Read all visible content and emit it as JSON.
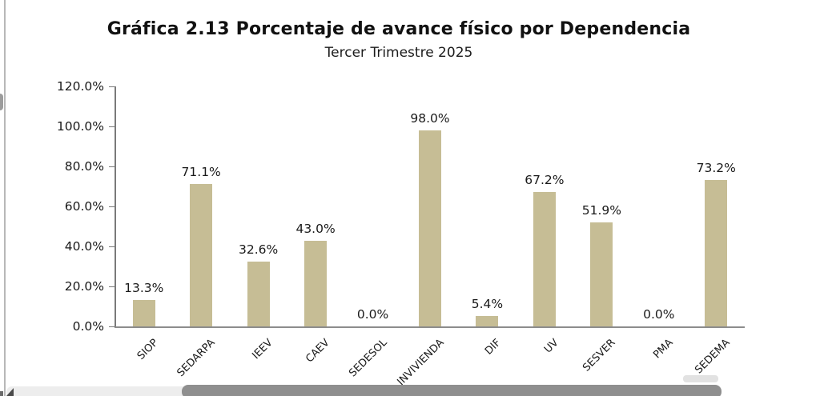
{
  "chart_data": {
    "type": "bar",
    "title": "Gráfica 2.13 Porcentaje de avance físico por Dependencia",
    "subtitle": "Tercer Trimestre 2025",
    "categories": [
      "SIOP",
      "SEDARPA",
      "IEEV",
      "CAEV",
      "SEDESOL",
      "INVIVIENDA",
      "DIF",
      "UV",
      "SESVER",
      "PMA",
      "SEDEMA"
    ],
    "values": [
      13.3,
      71.1,
      32.6,
      43.0,
      0.0,
      98.0,
      5.4,
      67.2,
      51.9,
      0.0,
      73.2
    ],
    "value_labels": [
      "13.3%",
      "71.1%",
      "32.6%",
      "43.0%",
      "0.0%",
      "98.0%",
      "5.4%",
      "67.2%",
      "51.9%",
      "0.0%",
      "73.2%"
    ],
    "y_ticks": [
      "120.0%",
      "100.0%",
      "80.0%",
      "60.0%",
      "40.0%",
      "20.0%",
      "0.0%"
    ],
    "ylim": [
      0,
      120
    ],
    "xlabel": "",
    "ylabel": "",
    "grid": false,
    "legend": null,
    "bar_color": "#c6bd95",
    "axis_color": "#7a7a7a"
  }
}
